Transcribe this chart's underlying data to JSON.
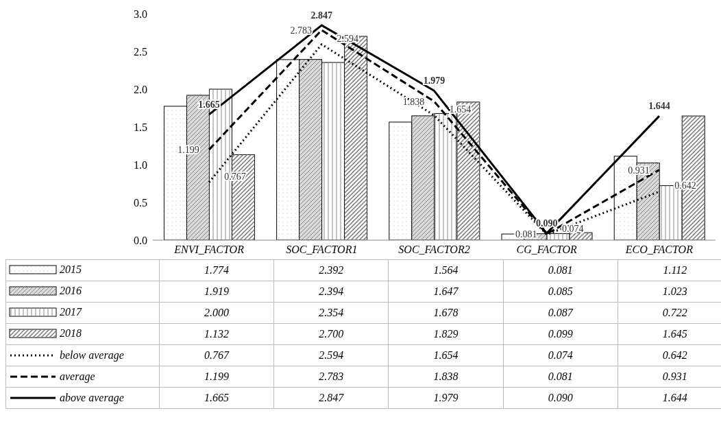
{
  "chart_data": {
    "type": "bar",
    "categories": [
      "ENVI_FACTOR",
      "SOC_FACTOR1",
      "SOC_FACTOR2",
      "CG_FACTOR",
      "ECO_FACTOR"
    ],
    "series": [
      {
        "name": "2015",
        "color": "#ffffff",
        "values": [
          1.774,
          2.392,
          1.564,
          0.081,
          1.112
        ],
        "value_labels": [
          "1.774",
          "2.392",
          "1.564",
          "0.081",
          "1.112"
        ]
      },
      {
        "name": "2016",
        "color": "#d9d9d9",
        "values": [
          1.919,
          2.394,
          1.647,
          0.085,
          1.023
        ],
        "value_labels": [
          "1.919",
          "2.394",
          "1.647",
          "0.085",
          "1.023"
        ]
      },
      {
        "name": "2017",
        "color": "#ffffff",
        "values": [
          2.0,
          2.354,
          1.678,
          0.087,
          0.722
        ],
        "value_labels": [
          "2.000",
          "2.354",
          "1.678",
          "0.087",
          "0.722"
        ]
      },
      {
        "name": "2018",
        "color": "#ffffff",
        "values": [
          1.132,
          2.7,
          1.829,
          0.099,
          1.645
        ],
        "value_labels": [
          "1.132",
          "2.700",
          "1.829",
          "0.099",
          "1.645"
        ]
      },
      {
        "name": "below average",
        "type": "line",
        "line_style": "dotted",
        "color": "#000000",
        "values": [
          0.767,
          2.594,
          1.654,
          0.074,
          0.642
        ],
        "value_labels": [
          "0.767",
          "2.594",
          "1.654",
          "0.074",
          "0.642"
        ]
      },
      {
        "name": "average",
        "type": "line",
        "line_style": "dashed",
        "color": "#000000",
        "values": [
          1.199,
          2.783,
          1.838,
          0.081,
          0.931
        ],
        "value_labels": [
          "1.199",
          "2.783",
          "1.838",
          "0.081",
          "0.931"
        ]
      },
      {
        "name": "above average",
        "type": "line",
        "line_style": "solid",
        "color": "#000000",
        "values": [
          1.665,
          2.847,
          1.979,
          0.09,
          1.644
        ],
        "value_labels": [
          "1.665",
          "2.847",
          "1.979",
          "0.090",
          "1.644"
        ]
      }
    ],
    "ylim": [
      0,
      3
    ],
    "yticks": [
      {
        "value": 0,
        "label": "0.0"
      },
      0.5,
      {
        "value": 1,
        "label": "1.0"
      },
      1.5,
      {
        "value": 2,
        "label": "2.0"
      },
      2.5,
      {
        "value": 3,
        "label": "3.0"
      }
    ],
    "grid": false,
    "marker": "none",
    "legend": "bottom"
  }
}
